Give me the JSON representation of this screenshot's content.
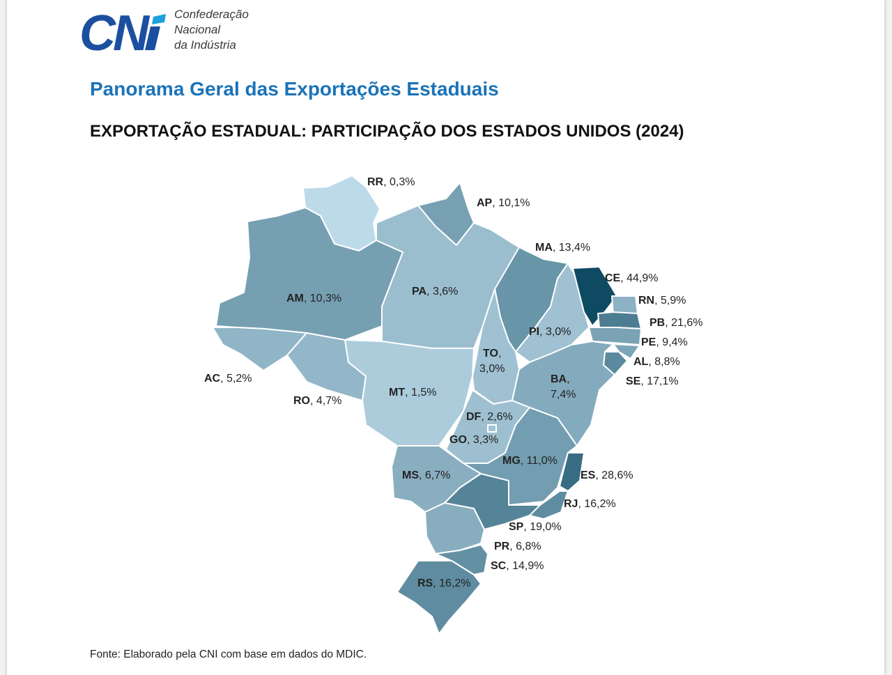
{
  "logo": {
    "mark_text": "CNI",
    "lines": [
      "Confederação",
      "Nacional",
      "da Indústria"
    ],
    "color": "#1b4fa0"
  },
  "page_title": "Panorama Geral das Exportações Estaduais",
  "map_title": "EXPORTAÇÃO ESTADUAL: PARTICIPAÇÃO DOS ESTADOS UNIDOS (2024)",
  "source": "Fonte: Elaborado pela CNI com base em dados do MDIC.",
  "colors": {
    "title_blue": "#1a73b8",
    "scale_low": "#c9e4f2",
    "scale_high": "#0f4a63"
  },
  "states": [
    {
      "code": "RR",
      "value": "0,3%",
      "share": 0.3
    },
    {
      "code": "AP",
      "value": "10,1%",
      "share": 10.1
    },
    {
      "code": "MA",
      "value": "13,4%",
      "share": 13.4
    },
    {
      "code": "CE",
      "value": "44,9%",
      "share": 44.9
    },
    {
      "code": "RN",
      "value": "5,9%",
      "share": 5.9
    },
    {
      "code": "PB",
      "value": "21,6%",
      "share": 21.6
    },
    {
      "code": "PE",
      "value": "9,4%",
      "share": 9.4
    },
    {
      "code": "AL",
      "value": "8,8%",
      "share": 8.8
    },
    {
      "code": "SE",
      "value": "17,1%",
      "share": 17.1
    },
    {
      "code": "AM",
      "value": "10,3%",
      "share": 10.3
    },
    {
      "code": "PA",
      "value": "3,6%",
      "share": 3.6
    },
    {
      "code": "PI",
      "value": "3,0%",
      "share": 3.0
    },
    {
      "code": "TO",
      "value": "3,0%",
      "share": 3.0
    },
    {
      "code": "AC",
      "value": "5,2%",
      "share": 5.2
    },
    {
      "code": "RO",
      "value": "4,7%",
      "share": 4.7
    },
    {
      "code": "MT",
      "value": "1,5%",
      "share": 1.5
    },
    {
      "code": "BA",
      "value": "7,4%",
      "share": 7.4
    },
    {
      "code": "DF",
      "value": "2,6%",
      "share": 2.6
    },
    {
      "code": "GO",
      "value": "3,3%",
      "share": 3.3
    },
    {
      "code": "MG",
      "value": "11,0%",
      "share": 11.0
    },
    {
      "code": "MS",
      "value": "6,7%",
      "share": 6.7
    },
    {
      "code": "ES",
      "value": "28,6%",
      "share": 28.6
    },
    {
      "code": "RJ",
      "value": "16,2%",
      "share": 16.2
    },
    {
      "code": "SP",
      "value": "19,0%",
      "share": 19.0
    },
    {
      "code": "PR",
      "value": "6,8%",
      "share": 6.8
    },
    {
      "code": "SC",
      "value": "14,9%",
      "share": 14.9
    },
    {
      "code": "RS",
      "value": "16,2%",
      "share": 16.2
    }
  ]
}
